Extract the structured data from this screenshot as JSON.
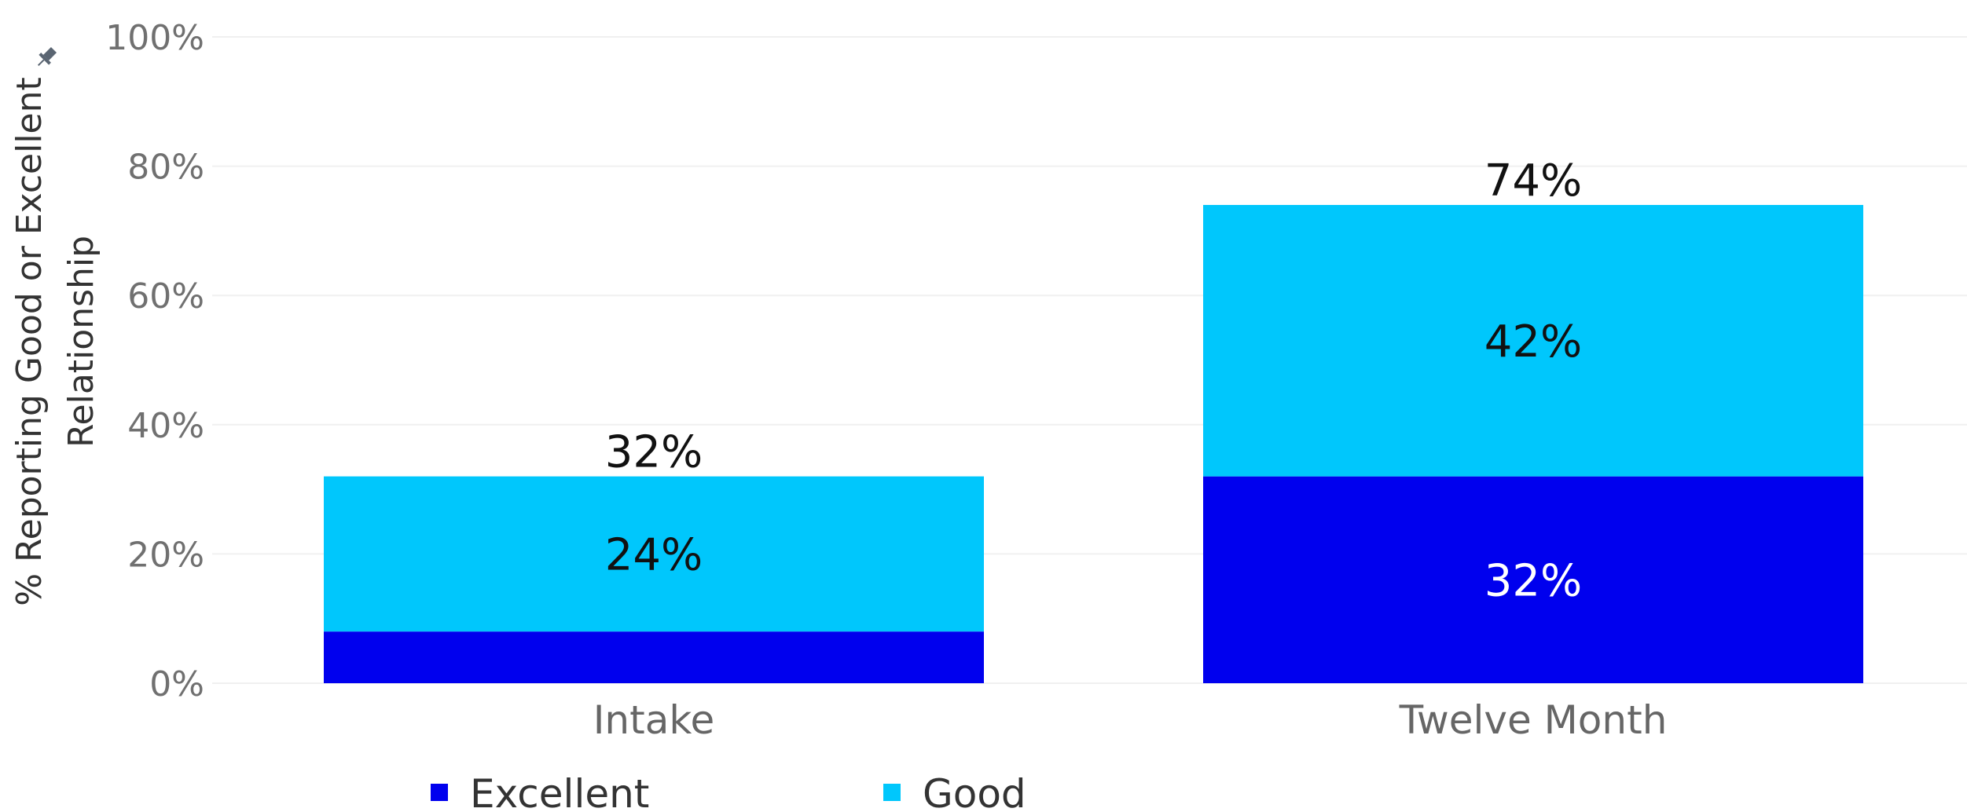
{
  "chart_data": {
    "type": "bar",
    "stacked": true,
    "categories": [
      "Intake",
      "Twelve Month"
    ],
    "series": [
      {
        "name": "Excellent",
        "color": "#0000ee",
        "values": [
          8,
          32
        ],
        "labels": [
          "",
          "32%"
        ],
        "label_color": "#ffffff"
      },
      {
        "name": "Good",
        "color": "#00c7fc",
        "values": [
          24,
          42
        ],
        "labels": [
          "24%",
          "42%"
        ],
        "label_color": "#111111"
      }
    ],
    "totals": [
      "32%",
      "74%"
    ],
    "ylabel_lines": [
      "% Reporting Good or Excellent",
      "Relationship"
    ],
    "yticks": [
      "0%",
      "20%",
      "40%",
      "60%",
      "80%",
      "100%"
    ],
    "ylim": [
      0,
      100
    ],
    "grid": true,
    "legend_position": "bottom-left",
    "gridline_color": "#f0f0f0",
    "pin_icon": "pin-icon"
  }
}
